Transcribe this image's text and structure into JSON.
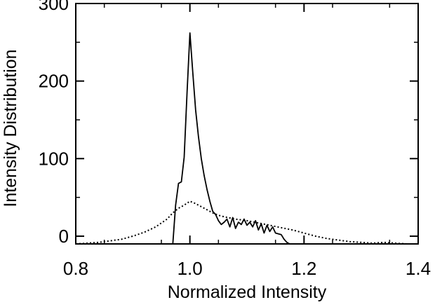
{
  "chart_data": {
    "type": "line",
    "title": "",
    "xlabel": "Normalized Intensity",
    "ylabel": "Intensity Distribution",
    "xlim": [
      0.8,
      1.4
    ],
    "ylim": [
      -10,
      300
    ],
    "xticks": [
      "0.8",
      "1.0",
      "1.2",
      "1.4"
    ],
    "yticks": [
      "0",
      "100",
      "200",
      "300"
    ],
    "grid": false,
    "legend": "none",
    "series": [
      {
        "style": "solid",
        "x": [
          0.97,
          0.975,
          0.98,
          0.985,
          0.99,
          0.995,
          1.0,
          1.005,
          1.01,
          1.015,
          1.02,
          1.025,
          1.03,
          1.035,
          1.04,
          1.045,
          1.05,
          1.055,
          1.06,
          1.065,
          1.07,
          1.075,
          1.08,
          1.085,
          1.09,
          1.095,
          1.1,
          1.105,
          1.11,
          1.115,
          1.12,
          1.125,
          1.13,
          1.135,
          1.14,
          1.145,
          1.15,
          1.16,
          1.165,
          1.17,
          1.175
        ],
        "y": [
          -10,
          40,
          68,
          70,
          102,
          185,
          262,
          212,
          163,
          128,
          100,
          78,
          60,
          45,
          32,
          28,
          20,
          15,
          18,
          22,
          12,
          24,
          10,
          18,
          15,
          22,
          14,
          18,
          12,
          20,
          8,
          16,
          4,
          14,
          6,
          12,
          4,
          2,
          -4,
          -8,
          -10
        ]
      },
      {
        "style": "dotted",
        "x": [
          0.8,
          0.82,
          0.84,
          0.86,
          0.88,
          0.9,
          0.92,
          0.94,
          0.96,
          0.97,
          0.98,
          0.99,
          1.0,
          1.01,
          1.02,
          1.03,
          1.04,
          1.05,
          1.06,
          1.08,
          1.1,
          1.12,
          1.14,
          1.16,
          1.18,
          1.2,
          1.22,
          1.24,
          1.26,
          1.28,
          1.3,
          1.32,
          1.34,
          1.36,
          1.38
        ],
        "y": [
          -10,
          -9,
          -8,
          -6,
          -4,
          0,
          5,
          12,
          22,
          30,
          36,
          40,
          45,
          42,
          38,
          34,
          30,
          27,
          25,
          22,
          20,
          17,
          14,
          11,
          8,
          4,
          0,
          -3,
          -5,
          -7,
          -8,
          -9,
          -8,
          -9,
          -10
        ]
      }
    ]
  }
}
